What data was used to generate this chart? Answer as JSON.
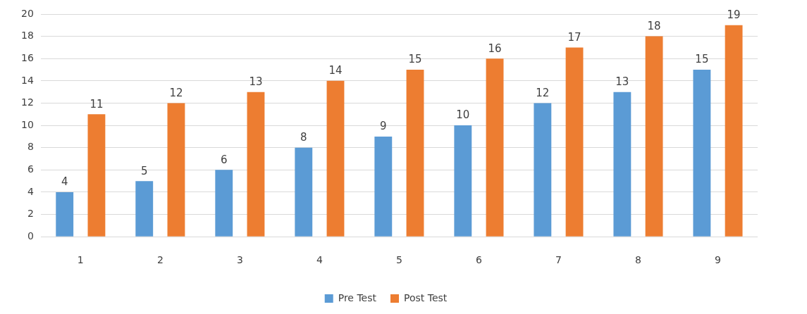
{
  "chart_data": {
    "type": "bar",
    "categories": [
      "1",
      "2",
      "3",
      "4",
      "5",
      "6",
      "7",
      "8",
      "9"
    ],
    "series": [
      {
        "name": "Pre Test",
        "color": "#5b9bd5",
        "values": [
          4,
          5,
          6,
          8,
          9,
          10,
          12,
          13,
          15
        ]
      },
      {
        "name": "Post Test",
        "color": "#ed7d31",
        "values": [
          11,
          12,
          13,
          14,
          15,
          16,
          17,
          18,
          19
        ]
      }
    ],
    "ylim": [
      0,
      20
    ],
    "yticks": [
      0,
      2,
      4,
      6,
      8,
      10,
      12,
      14,
      16,
      18,
      20
    ],
    "grid": "y",
    "legend": "bottom",
    "data_labels": true
  }
}
